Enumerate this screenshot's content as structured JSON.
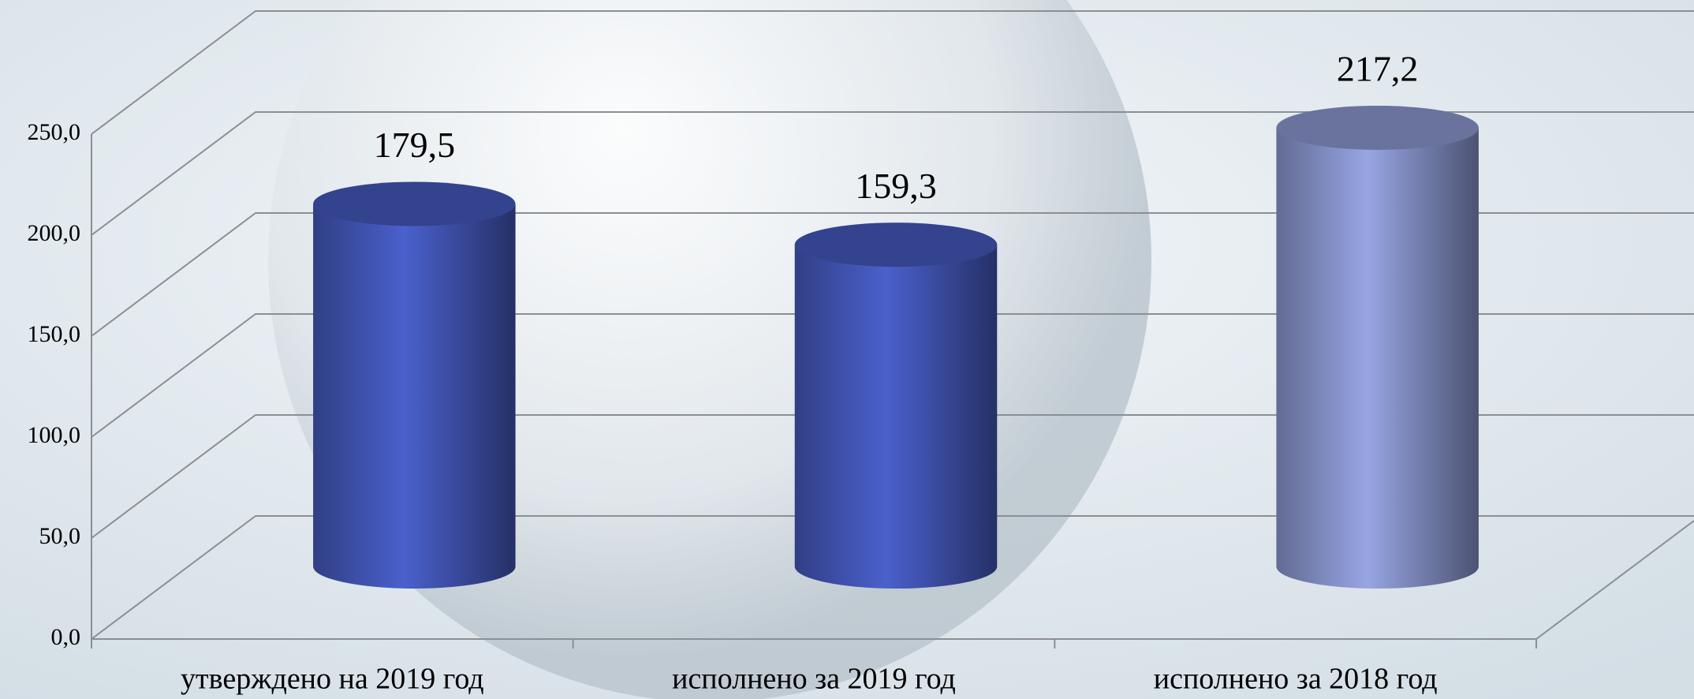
{
  "chart_data": {
    "type": "bar3d",
    "categories": [
      "утверждено на 2019 год",
      "исполнено за 2019 год",
      "исполнено за 2018 год"
    ],
    "values": [
      179.5,
      159.3,
      217.2
    ],
    "value_labels": [
      "179,5",
      "159,3",
      "217,2"
    ],
    "colors": [
      "#4a60cc",
      "#4a60cc",
      "#97a5e3"
    ],
    "ylim": [
      0,
      250
    ],
    "yticks": [
      {
        "value": 0,
        "label": "0,0"
      },
      {
        "value": 50,
        "label": "50,0"
      },
      {
        "value": 100,
        "label": "100,0"
      },
      {
        "value": 150,
        "label": "150,0"
      },
      {
        "value": 200,
        "label": "200,0"
      },
      {
        "value": 250,
        "label": "250,0"
      }
    ],
    "grid": true
  }
}
